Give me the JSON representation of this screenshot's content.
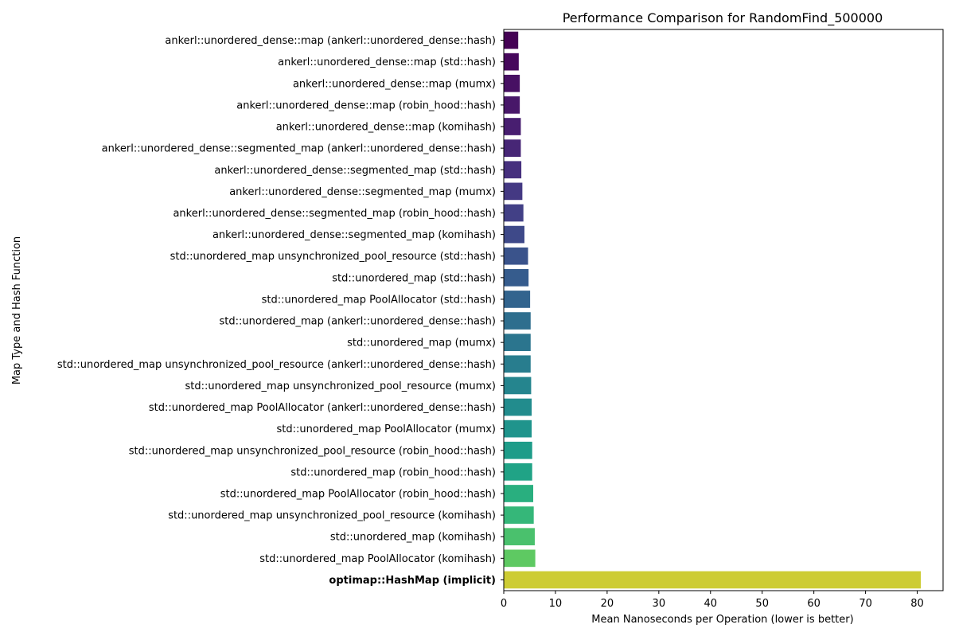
{
  "chart_data": {
    "type": "bar",
    "orientation": "horizontal",
    "title": "Performance Comparison for RandomFind_500000",
    "xlabel": "Mean Nanoseconds per Operation (lower is better)",
    "ylabel": "Map Type and Hash Function",
    "xlim": [
      0,
      85
    ],
    "xticks": [
      0,
      10,
      20,
      30,
      40,
      50,
      60,
      70,
      80
    ],
    "grid": false,
    "highlight_category": "optimap::HashMap (implicit)",
    "categories": [
      "ankerl::unordered_dense::map (ankerl::unordered_dense::hash)",
      "ankerl::unordered_dense::map (std::hash)",
      "ankerl::unordered_dense::map (mumx)",
      "ankerl::unordered_dense::map (robin_hood::hash)",
      "ankerl::unordered_dense::map (komihash)",
      "ankerl::unordered_dense::segmented_map (ankerl::unordered_dense::hash)",
      "ankerl::unordered_dense::segmented_map (std::hash)",
      "ankerl::unordered_dense::segmented_map (mumx)",
      "ankerl::unordered_dense::segmented_map (robin_hood::hash)",
      "ankerl::unordered_dense::segmented_map (komihash)",
      "std::unordered_map unsynchronized_pool_resource (std::hash)",
      "std::unordered_map (std::hash)",
      "std::unordered_map PoolAllocator (std::hash)",
      "std::unordered_map (ankerl::unordered_dense::hash)",
      "std::unordered_map (mumx)",
      "std::unordered_map unsynchronized_pool_resource (ankerl::unordered_dense::hash)",
      "std::unordered_map unsynchronized_pool_resource (mumx)",
      "std::unordered_map PoolAllocator (ankerl::unordered_dense::hash)",
      "std::unordered_map PoolAllocator (mumx)",
      "std::unordered_map unsynchronized_pool_resource (robin_hood::hash)",
      "std::unordered_map (robin_hood::hash)",
      "std::unordered_map PoolAllocator (robin_hood::hash)",
      "std::unordered_map unsynchronized_pool_resource (komihash)",
      "std::unordered_map (komihash)",
      "std::unordered_map PoolAllocator (komihash)",
      "optimap::HashMap (implicit)"
    ],
    "values": [
      2.8,
      2.9,
      3.1,
      3.1,
      3.3,
      3.3,
      3.4,
      3.6,
      3.8,
      4.0,
      4.7,
      4.8,
      5.1,
      5.2,
      5.2,
      5.2,
      5.3,
      5.4,
      5.4,
      5.5,
      5.5,
      5.7,
      5.8,
      6.0,
      6.1,
      80.7
    ],
    "colors": [
      "#440154",
      "#46085c",
      "#471063",
      "#481769",
      "#481e70",
      "#472676",
      "#46307e",
      "#443983",
      "#424086",
      "#3e4989",
      "#3a538b",
      "#365c8d",
      "#32648e",
      "#2e6e8e",
      "#2b758e",
      "#287d8e",
      "#25858e",
      "#228c8d",
      "#1f948c",
      "#1e9c89",
      "#20a386",
      "#29af7f",
      "#35b779",
      "#4ac16d",
      "#5ec962",
      "#b5de2b"
    ]
  }
}
